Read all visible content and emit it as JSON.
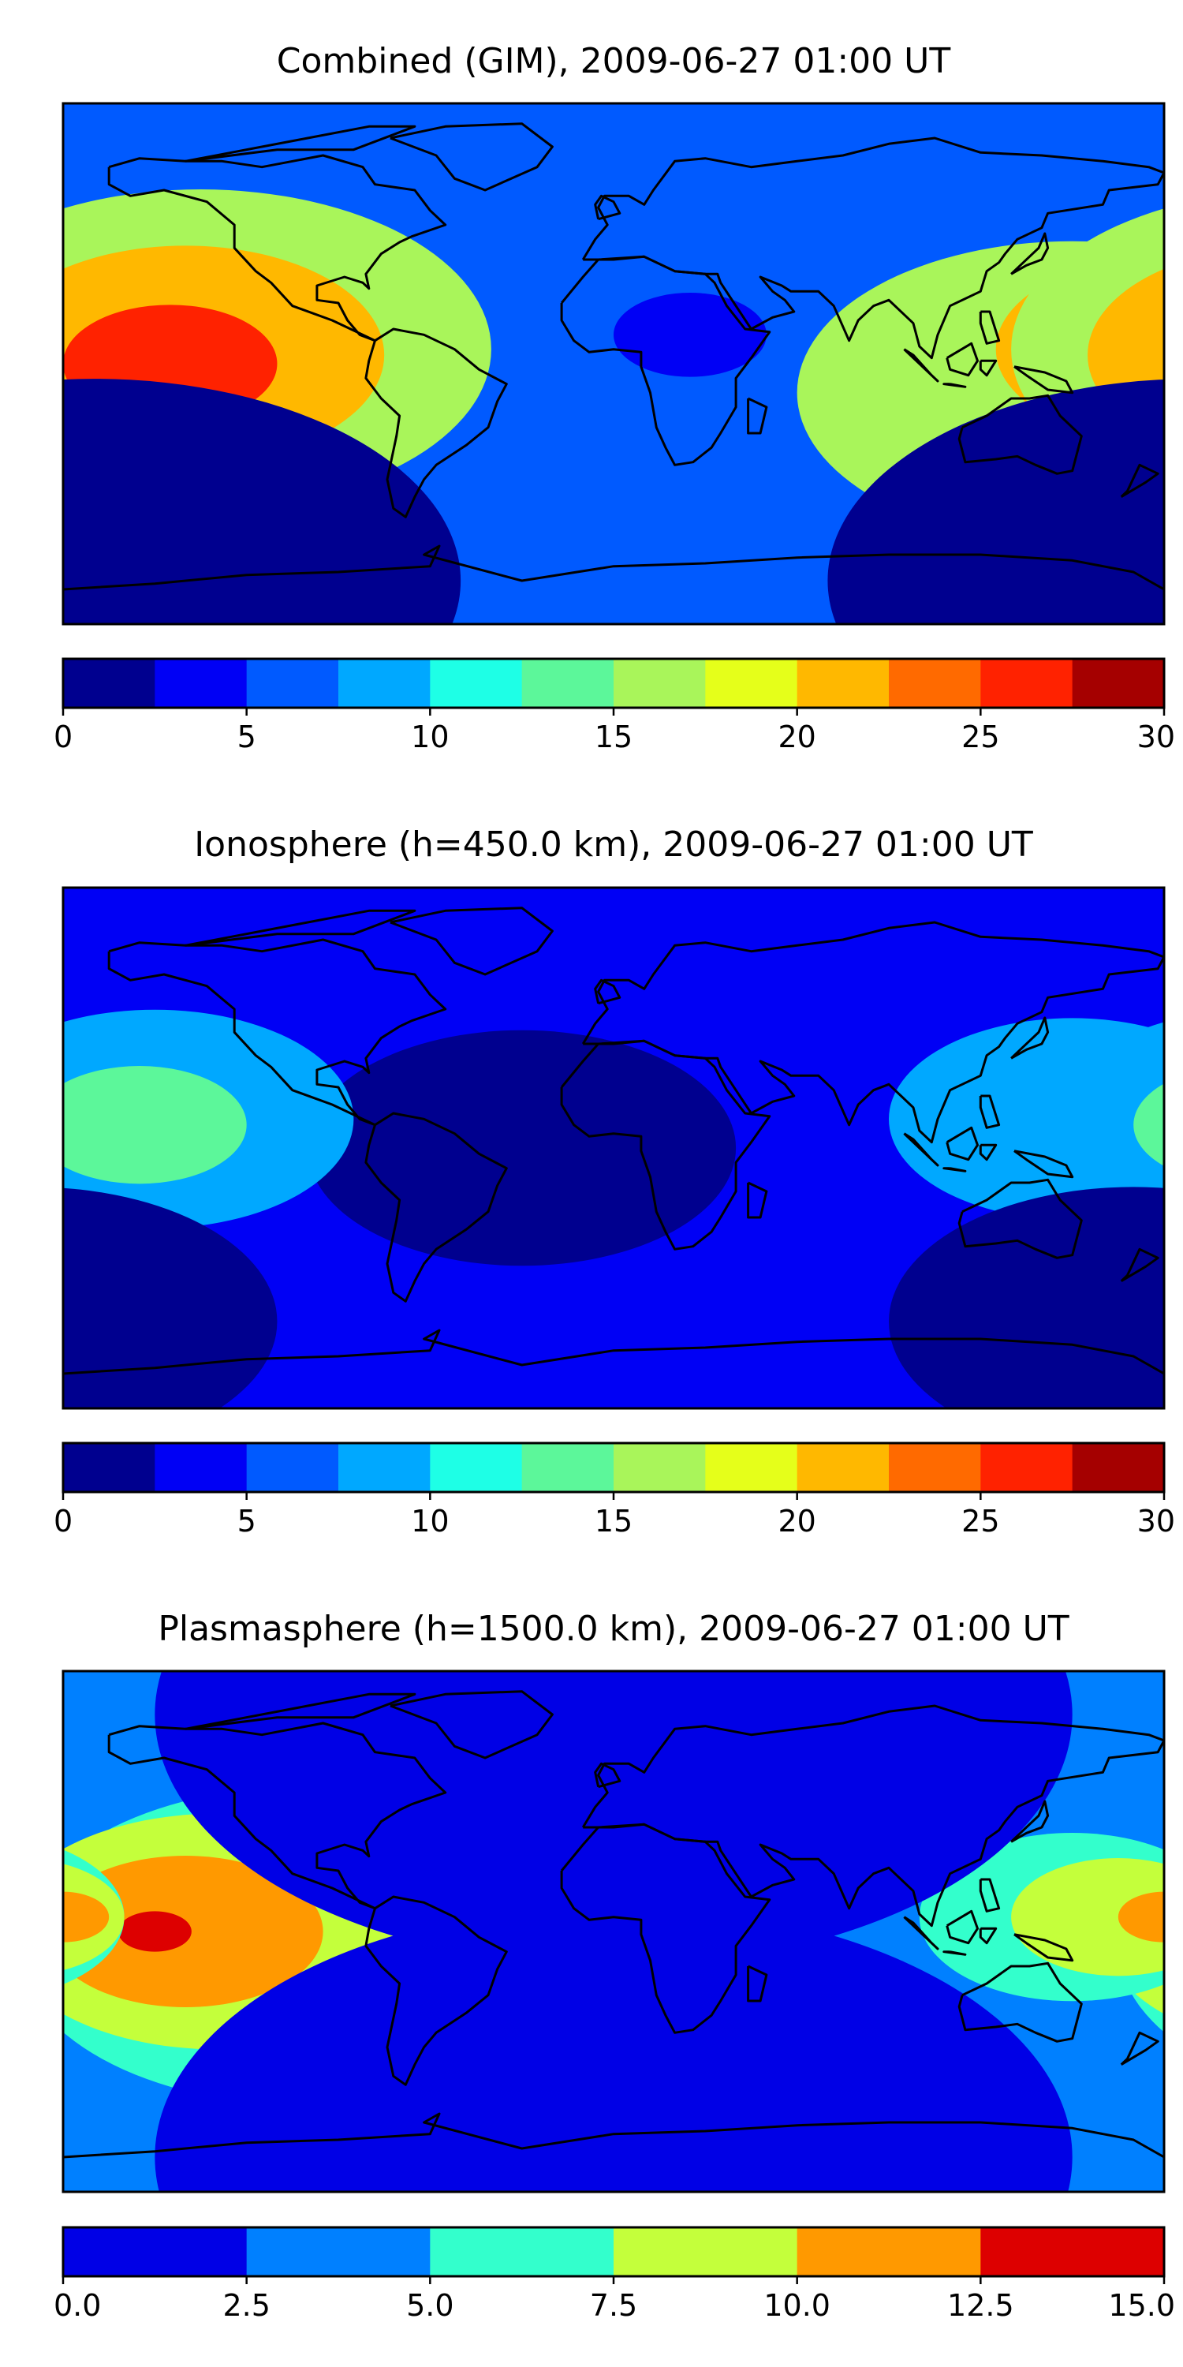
{
  "chart_data": [
    {
      "type": "heatmap",
      "title": "Combined (GIM), 2009-06-27 01:00 UT",
      "colorbar": {
        "levels": [
          0,
          2.5,
          5,
          7.5,
          10,
          12.5,
          15,
          17.5,
          20,
          22.5,
          25,
          27.5,
          30
        ],
        "tick_labels": [
          "0",
          "5",
          "10",
          "15",
          "20",
          "25",
          "30"
        ],
        "colors": [
          "#00008f",
          "#0000f5",
          "#005aff",
          "#00a8ff",
          "#1effe6",
          "#5cf79a",
          "#a9f55a",
          "#e5ff1a",
          "#ffb800",
          "#ff6a00",
          "#ff2200",
          "#a50000"
        ]
      },
      "background_level": 5,
      "blobs": [
        {
          "lon": 150,
          "lat": -10,
          "r": 90,
          "level": 15
        },
        {
          "lon": 180,
          "lat": 5,
          "r": 55,
          "level": 20
        },
        {
          "lon": -135,
          "lat": 5,
          "r": 95,
          "level": 15
        },
        {
          "lon": -140,
          "lat": 3,
          "r": 65,
          "level": 20
        },
        {
          "lon": -145,
          "lat": 0,
          "r": 35,
          "level": 25
        },
        {
          "lon": 25,
          "lat": 10,
          "r": 25,
          "level": 2.5
        },
        {
          "lon": -170,
          "lat": -75,
          "r": 120,
          "level": 0
        }
      ]
    },
    {
      "type": "heatmap",
      "title": "Ionosphere  (h=450.0 km), 2009-06-27 01:00 UT",
      "colorbar": {
        "levels": [
          0,
          2.5,
          5,
          7.5,
          10,
          12.5,
          15,
          17.5,
          20,
          22.5,
          25,
          27.5,
          30
        ],
        "tick_labels": [
          "0",
          "5",
          "10",
          "15",
          "20",
          "25",
          "30"
        ],
        "colors": [
          "#00008f",
          "#0000f5",
          "#005aff",
          "#00a8ff",
          "#1effe6",
          "#5cf79a",
          "#a9f55a",
          "#e5ff1a",
          "#ffb800",
          "#ff6a00",
          "#ff2200",
          "#a50000"
        ]
      },
      "background_level": 2.5,
      "blobs": [
        {
          "lon": -30,
          "lat": 0,
          "r": 70,
          "level": 0
        },
        {
          "lon": 150,
          "lat": 10,
          "r": 60,
          "level": 7.5
        },
        {
          "lon": -150,
          "lat": 10,
          "r": 65,
          "level": 7.5
        },
        {
          "lon": -155,
          "lat": 8,
          "r": 35,
          "level": 12.5
        },
        {
          "lon": 170,
          "lat": -60,
          "r": 80,
          "level": 0
        }
      ]
    },
    {
      "type": "heatmap",
      "title": "Plasmasphere (h=1500.0 km), 2009-06-27 01:00 UT",
      "colorbar": {
        "levels": [
          0.0,
          2.5,
          5.0,
          7.5,
          10.0,
          12.5,
          15.0
        ],
        "tick_labels": [
          "0.0",
          "2.5",
          "5.0",
          "7.5",
          "10.0",
          "12.5",
          "15.0"
        ],
        "colors": [
          "#0000e6",
          "#0080ff",
          "#33ffcc",
          "#c4ff3b",
          "#ff9900",
          "#dd0000"
        ]
      },
      "background_level": 2.5,
      "blobs": [
        {
          "lon": -100,
          "lat": -5,
          "r": 95,
          "level": 5
        },
        {
          "lon": -130,
          "lat": 0,
          "r": 70,
          "level": 7.5
        },
        {
          "lon": -140,
          "lat": 0,
          "r": 45,
          "level": 10
        },
        {
          "lon": -150,
          "lat": 0,
          "r": 12,
          "level": 12.5
        },
        {
          "lon": 150,
          "lat": 5,
          "r": 50,
          "level": 5
        },
        {
          "lon": 165,
          "lat": 5,
          "r": 35,
          "level": 7.5
        },
        {
          "lon": 180,
          "lat": 5,
          "r": 15,
          "level": 10
        },
        {
          "lon": 0,
          "lat": 75,
          "r": 150,
          "level": 0
        },
        {
          "lon": 0,
          "lat": -78,
          "r": 150,
          "level": 0
        }
      ]
    }
  ]
}
